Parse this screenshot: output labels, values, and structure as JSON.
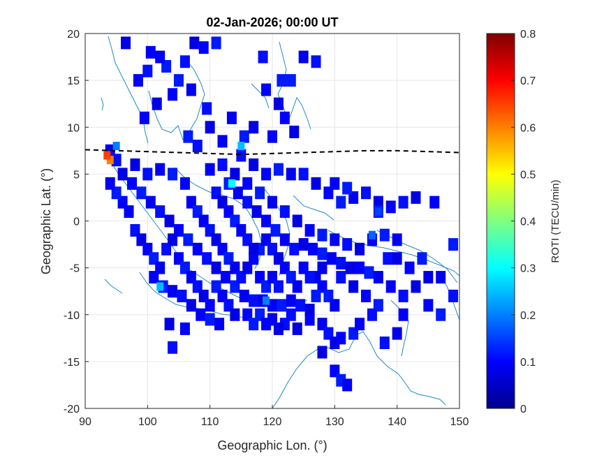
{
  "chart_data": {
    "type": "heatmap",
    "title": "02-Jan-2026; 00:00 UT",
    "xlabel": "Geographic Lon. (°)",
    "ylabel": "Geographic Lat. (°)",
    "xlim": [
      90,
      150
    ],
    "ylim": [
      -20,
      20
    ],
    "xticks": [
      90,
      100,
      110,
      120,
      130,
      140,
      150
    ],
    "yticks": [
      20,
      15,
      10,
      5,
      0,
      -5,
      -10,
      -15,
      -20
    ],
    "grid": true,
    "colorbar": {
      "label": "ROTI (TECU/min)",
      "range": [
        0,
        0.8
      ],
      "ticks": [
        0,
        0.1,
        0.2,
        0.3,
        0.4,
        0.5,
        0.6,
        0.7,
        0.8
      ],
      "colormap": "jet"
    },
    "magnetic_equator": [
      [
        90,
        7.6
      ],
      [
        95,
        7.5
      ],
      [
        100,
        7.4
      ],
      [
        105,
        7.3
      ],
      [
        110,
        7.2
      ],
      [
        115,
        7.1
      ],
      [
        120,
        7.2
      ],
      [
        125,
        7.3
      ],
      [
        130,
        7.4
      ],
      [
        135,
        7.5
      ],
      [
        140,
        7.5
      ],
      [
        145,
        7.4
      ],
      [
        150,
        7.3
      ]
    ],
    "cells": [
      [
        96.5,
        19
      ],
      [
        100.5,
        18
      ],
      [
        103,
        16.5
      ],
      [
        102,
        17.5
      ],
      [
        106,
        17
      ],
      [
        107.5,
        19
      ],
      [
        109,
        18.5
      ],
      [
        111,
        19
      ],
      [
        98.5,
        15
      ],
      [
        100,
        16
      ],
      [
        101.5,
        12.5
      ],
      [
        104,
        13.5
      ],
      [
        105,
        15
      ],
      [
        107,
        14
      ],
      [
        109.5,
        12
      ],
      [
        110,
        10
      ],
      [
        99.5,
        11
      ],
      [
        106.5,
        9
      ],
      [
        113.5,
        11
      ],
      [
        118.5,
        17.5
      ],
      [
        121,
        12.5
      ],
      [
        122,
        11
      ],
      [
        123,
        15
      ],
      [
        125,
        17.5
      ],
      [
        127,
        17
      ],
      [
        123.5,
        9.5
      ],
      [
        120,
        9
      ],
      [
        115.5,
        9
      ],
      [
        112,
        8.5
      ],
      [
        108,
        8
      ],
      [
        117,
        10
      ],
      [
        119,
        14
      ],
      [
        121.5,
        15
      ],
      [
        94,
        7.5
      ],
      [
        95,
        6.5
      ],
      [
        96,
        5
      ],
      [
        97.5,
        4
      ],
      [
        99,
        3
      ],
      [
        100.5,
        2
      ],
      [
        102,
        1
      ],
      [
        103.5,
        0
      ],
      [
        105,
        -1
      ],
      [
        106.5,
        -2
      ],
      [
        108,
        -3
      ],
      [
        109.5,
        -4
      ],
      [
        111,
        -5
      ],
      [
        112.5,
        -6
      ],
      [
        114,
        -7
      ],
      [
        115.5,
        -8
      ],
      [
        117,
        -8.5
      ],
      [
        118.5,
        -8.5
      ],
      [
        120,
        -9
      ],
      [
        121.5,
        -9
      ],
      [
        123,
        -8.5
      ],
      [
        124.5,
        -9
      ],
      [
        126,
        -9.5
      ],
      [
        101,
        -6
      ],
      [
        102.5,
        -7
      ],
      [
        104,
        -7.5
      ],
      [
        105.5,
        -8
      ],
      [
        107,
        -9
      ],
      [
        108.5,
        -10
      ],
      [
        110,
        -10.5
      ],
      [
        111.5,
        -11
      ],
      [
        104,
        -13.5
      ],
      [
        103.5,
        -11
      ],
      [
        106,
        -11.5
      ],
      [
        113,
        4
      ],
      [
        114.5,
        3
      ],
      [
        116,
        2
      ],
      [
        117.5,
        1
      ],
      [
        119,
        0
      ],
      [
        120.5,
        -1
      ],
      [
        122,
        -2
      ],
      [
        123.5,
        -3
      ],
      [
        125,
        -2.5
      ],
      [
        126.5,
        -3
      ],
      [
        128,
        -3.5
      ],
      [
        129.5,
        -4
      ],
      [
        131,
        -4.5
      ],
      [
        132.5,
        -5
      ],
      [
        134,
        -5
      ],
      [
        135.5,
        -5.5
      ],
      [
        137,
        -6
      ],
      [
        138.5,
        -4
      ],
      [
        140,
        -4
      ],
      [
        142,
        -5
      ],
      [
        144,
        -4
      ],
      [
        110,
        5.5
      ],
      [
        112,
        6
      ],
      [
        114,
        5
      ],
      [
        116,
        4
      ],
      [
        118,
        3
      ],
      [
        120,
        2
      ],
      [
        122,
        1
      ],
      [
        124,
        0
      ],
      [
        126,
        -1
      ],
      [
        128,
        -1.5
      ],
      [
        130,
        -2
      ],
      [
        132,
        -2.5
      ],
      [
        134,
        -3
      ],
      [
        136,
        -2
      ],
      [
        138,
        -1.5
      ],
      [
        140,
        -2
      ],
      [
        115,
        7
      ],
      [
        117,
        6
      ],
      [
        119,
        5
      ],
      [
        121,
        5.5
      ],
      [
        123,
        5
      ],
      [
        125,
        5
      ],
      [
        127,
        4
      ],
      [
        129,
        3
      ],
      [
        131,
        2
      ],
      [
        133,
        2.5
      ],
      [
        135,
        3
      ],
      [
        137,
        2
      ],
      [
        130,
        4
      ],
      [
        132,
        3.5
      ],
      [
        97,
        1
      ],
      [
        98,
        -1
      ],
      [
        99,
        -2
      ],
      [
        100,
        -3
      ],
      [
        101,
        -4
      ],
      [
        102,
        -5
      ],
      [
        103,
        -3
      ],
      [
        104,
        -2
      ],
      [
        105,
        -4
      ],
      [
        106,
        -5
      ],
      [
        107,
        -6
      ],
      [
        108,
        -7
      ],
      [
        109,
        -8
      ],
      [
        110,
        -9
      ],
      [
        111,
        -7
      ],
      [
        112,
        -8
      ],
      [
        113,
        -9
      ],
      [
        114,
        -10
      ],
      [
        116,
        -10
      ],
      [
        118,
        -10
      ],
      [
        120,
        -10.5
      ],
      [
        122,
        -11
      ],
      [
        124,
        -11.5
      ],
      [
        107,
        2
      ],
      [
        108,
        1
      ],
      [
        109,
        0
      ],
      [
        110,
        -1
      ],
      [
        111,
        -2
      ],
      [
        112,
        -3
      ],
      [
        113,
        -4
      ],
      [
        114,
        -5
      ],
      [
        115,
        -6
      ],
      [
        116,
        -5
      ],
      [
        117,
        -4
      ],
      [
        118,
        -3
      ],
      [
        119,
        -2
      ],
      [
        120,
        -3
      ],
      [
        121,
        -4
      ],
      [
        122,
        -5
      ],
      [
        123,
        -6
      ],
      [
        124,
        -7
      ],
      [
        111,
        3
      ],
      [
        112,
        2
      ],
      [
        113,
        1
      ],
      [
        114,
        0
      ],
      [
        115,
        -1
      ],
      [
        116,
        -2
      ],
      [
        117,
        -3
      ],
      [
        118,
        -6
      ],
      [
        119,
        -7
      ],
      [
        120,
        -6
      ],
      [
        121,
        -7
      ],
      [
        127,
        -6
      ],
      [
        128,
        -7
      ],
      [
        129,
        -8
      ],
      [
        130,
        -9
      ],
      [
        131,
        -6
      ],
      [
        133,
        -7
      ],
      [
        135,
        -8
      ],
      [
        137,
        -9
      ],
      [
        139,
        -7
      ],
      [
        141,
        -8
      ],
      [
        143,
        -7
      ],
      [
        145,
        -9
      ],
      [
        147,
        -10
      ],
      [
        128,
        -11
      ],
      [
        129,
        -12
      ],
      [
        130,
        -13
      ],
      [
        131,
        -12.5
      ],
      [
        133,
        -12
      ],
      [
        134,
        -11
      ],
      [
        136,
        -10
      ],
      [
        128,
        -14
      ],
      [
        130,
        -16
      ],
      [
        131,
        -17
      ],
      [
        132,
        -17.5
      ],
      [
        138,
        -13
      ],
      [
        140,
        -12
      ],
      [
        141,
        -10
      ],
      [
        137,
        1
      ],
      [
        139,
        1.5
      ],
      [
        141,
        2
      ],
      [
        143,
        2.5
      ],
      [
        146,
        2
      ],
      [
        149,
        -2.5
      ],
      [
        147,
        -6
      ],
      [
        149,
        -8
      ],
      [
        145,
        -6
      ],
      [
        106,
        4
      ],
      [
        104,
        5
      ],
      [
        102,
        5.5
      ],
      [
        100,
        5
      ],
      [
        98,
        6
      ],
      [
        96,
        2
      ],
      [
        95,
        3
      ],
      [
        94,
        4
      ],
      [
        126,
        -6
      ],
      [
        128,
        -5
      ],
      [
        125,
        -5
      ],
      [
        127,
        -8
      ],
      [
        126,
        -10.5
      ],
      [
        123,
        -10
      ],
      [
        121,
        -11.5
      ],
      [
        119,
        -11
      ],
      [
        117,
        -11
      ]
    ],
    "hot_cells": [
      {
        "lon": 94,
        "lat": 6.5,
        "roti": 0.6
      },
      {
        "lon": 93.5,
        "lat": 7,
        "roti": 0.65
      },
      {
        "lon": 113.5,
        "lat": 4,
        "roti": 0.3
      },
      {
        "lon": 115,
        "lat": 8,
        "roti": 0.25
      },
      {
        "lon": 102,
        "lat": -7,
        "roti": 0.25
      },
      {
        "lon": 119,
        "lat": -8.5,
        "roti": 0.2
      },
      {
        "lon": 137,
        "lat": 1,
        "roti": 0.15
      },
      {
        "lon": 136,
        "lat": -1.5,
        "roti": 0.18
      },
      {
        "lon": 95,
        "lat": 8,
        "roti": 0.2
      }
    ]
  }
}
